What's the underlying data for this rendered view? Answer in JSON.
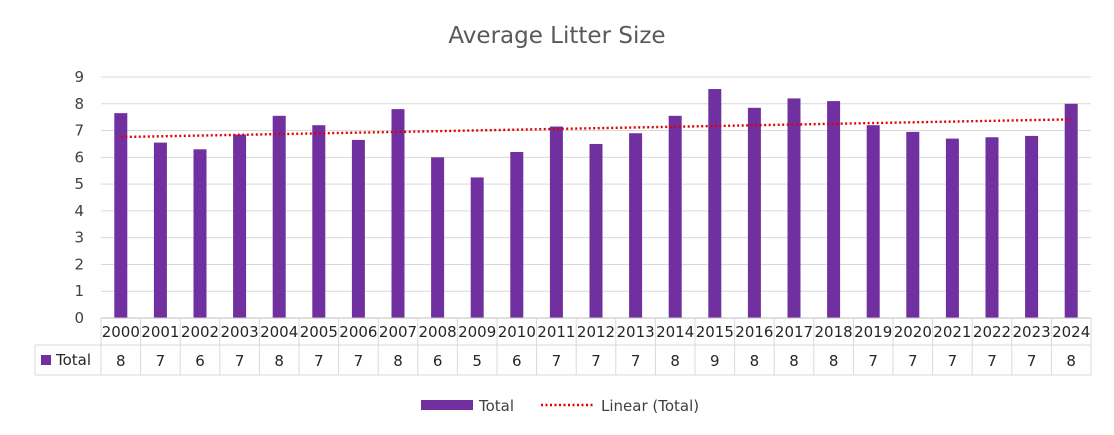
{
  "chart_data": {
    "type": "bar",
    "title": "Average Litter Size",
    "categories": [
      "2000",
      "2001",
      "2002",
      "2003",
      "2004",
      "2005",
      "2006",
      "2007",
      "2008",
      "2009",
      "2010",
      "2011",
      "2012",
      "2013",
      "2014",
      "2015",
      "2016",
      "2017",
      "2018",
      "2019",
      "2020",
      "2021",
      "2022",
      "2023",
      "2024"
    ],
    "series": [
      {
        "name": "Total",
        "values": [
          7.65,
          6.55,
          6.3,
          6.85,
          7.55,
          7.2,
          6.65,
          7.8,
          6.0,
          5.25,
          6.2,
          7.15,
          6.5,
          6.9,
          7.55,
          8.55,
          7.85,
          8.2,
          8.1,
          7.2,
          6.95,
          6.7,
          6.75,
          6.8,
          8.0
        ],
        "color": "#7030A0"
      }
    ],
    "table_values": [
      "8",
      "7",
      "6",
      "7",
      "8",
      "7",
      "7",
      "8",
      "6",
      "5",
      "6",
      "7",
      "7",
      "7",
      "8",
      "9",
      "8",
      "8",
      "8",
      "7",
      "7",
      "7",
      "7",
      "7",
      "8"
    ],
    "table_series_label": "Total",
    "trendline": {
      "name": "Linear (Total)",
      "type": "linear",
      "color": "#E00000"
    },
    "ylim": [
      0,
      9
    ],
    "yticks": [
      "0",
      "1",
      "2",
      "3",
      "4",
      "5",
      "6",
      "7",
      "8",
      "9"
    ],
    "grid": true,
    "legend": {
      "position": "bottom",
      "entries": [
        "Total",
        "Linear (Total)"
      ]
    }
  }
}
